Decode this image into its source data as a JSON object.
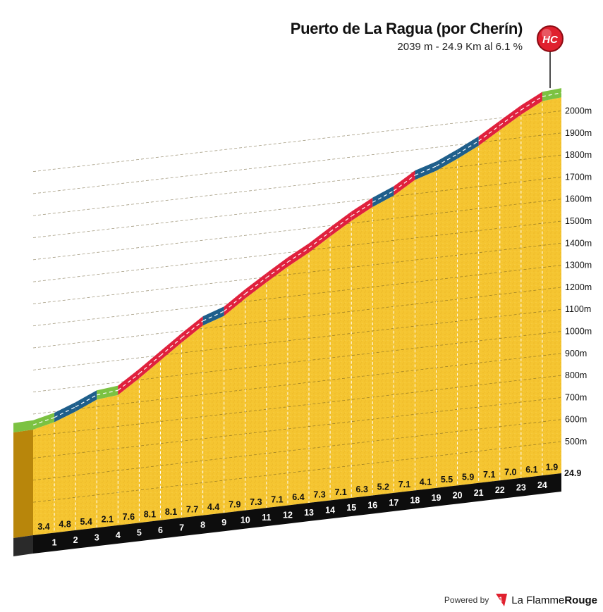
{
  "climb": {
    "name": "Puerto de La Ragua (por Cherín)",
    "stats": "2039 m - 24.9 Km al 6.1 %",
    "category_badge": "HC"
  },
  "footer": {
    "powered_by": "Powered by",
    "brand_part1": "La Flamme",
    "brand_part2": "Rouge",
    "brand_mark": "1"
  },
  "colors": {
    "fill": "#f5c531",
    "green": "#7cc242",
    "blue": "#1f5f8b",
    "red": "#e0213d",
    "badge": "#e0202e",
    "side": "#b8860b",
    "km_band": "#0d0d0d"
  },
  "chart_data": {
    "type": "area",
    "x_unit": "km",
    "y_unit": "m",
    "km_markers": [
      "1",
      "2",
      "3",
      "4",
      "5",
      "6",
      "7",
      "8",
      "9",
      "10",
      "11",
      "12",
      "13",
      "14",
      "15",
      "16",
      "17",
      "18",
      "19",
      "20",
      "21",
      "22",
      "23",
      "24"
    ],
    "final_km_label": "24.9",
    "gradients": [
      3.4,
      4.8,
      5.4,
      2.1,
      7.6,
      8.1,
      8.1,
      7.7,
      4.4,
      7.9,
      7.3,
      7.1,
      6.4,
      7.3,
      7.1,
      6.3,
      5.2,
      7.1,
      4.1,
      5.5,
      5.9,
      7.1,
      7.0,
      6.1,
      1.9
    ],
    "gradient_labels": [
      "3.4",
      "4.8",
      "5.4",
      "2.1",
      "7.6",
      "8.1",
      "8.1",
      "7.7",
      "4.4",
      "7.9",
      "7.3",
      "7.1",
      "6.4",
      "7.3",
      "7.1",
      "6.3",
      "5.2",
      "7.1",
      "4.1",
      "5.5",
      "5.9",
      "7.1",
      "7.0",
      "6.1",
      "1.9"
    ],
    "segment_colors": [
      "green",
      "blue",
      "blue",
      "green",
      "red",
      "red",
      "red",
      "red",
      "blue",
      "red",
      "red",
      "red",
      "red",
      "red",
      "red",
      "red",
      "blue",
      "red",
      "blue",
      "blue",
      "blue",
      "red",
      "red",
      "red",
      "green"
    ],
    "y_ticks": [
      "500m",
      "600m",
      "700m",
      "800m",
      "900m",
      "1000m",
      "1100m",
      "1200m",
      "1300m",
      "1400m",
      "1500m",
      "1600m",
      "1700m",
      "1800m",
      "1900m",
      "2000m"
    ],
    "y_tick_values": [
      500,
      600,
      700,
      800,
      900,
      1000,
      1100,
      1200,
      1300,
      1400,
      1500,
      1600,
      1700,
      1800,
      1900,
      2000
    ],
    "summit_elevation": 2039,
    "total_km": 24.9,
    "avg_gradient": 6.1
  }
}
